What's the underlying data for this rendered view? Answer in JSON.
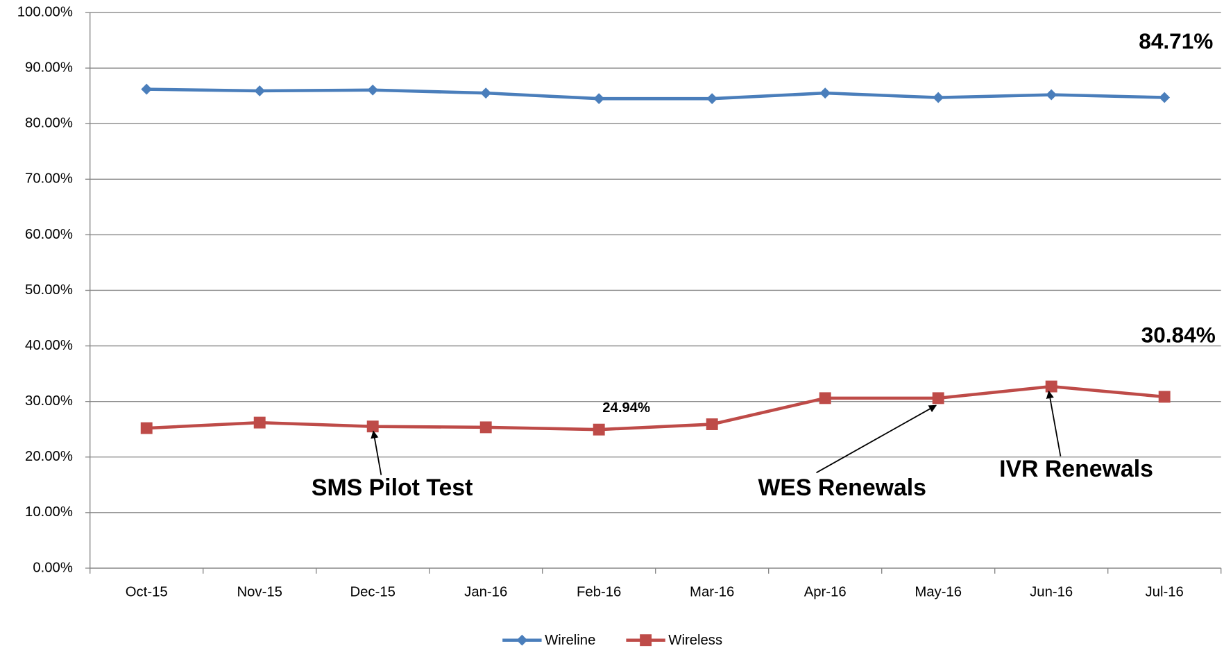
{
  "chart_data": {
    "type": "line",
    "categories": [
      "Oct-15",
      "Nov-15",
      "Dec-15",
      "Jan-16",
      "Feb-16",
      "Mar-16",
      "Apr-16",
      "May-16",
      "Jun-16",
      "Jul-16"
    ],
    "series": [
      {
        "name": "Wireline",
        "color": "#4a7ebb",
        "marker": "diamond",
        "values": [
          86.2,
          85.9,
          86.05,
          85.5,
          84.5,
          84.5,
          85.5,
          84.7,
          85.2,
          84.71
        ],
        "value_labels": [
          null,
          null,
          null,
          null,
          null,
          null,
          null,
          null,
          null,
          "84.71%"
        ]
      },
      {
        "name": "Wireless",
        "color": "#be4b48",
        "marker": "square",
        "values": [
          25.2,
          26.2,
          25.5,
          25.35,
          24.94,
          25.9,
          30.6,
          30.6,
          32.7,
          30.84
        ],
        "value_labels": [
          null,
          null,
          null,
          null,
          "24.94%",
          null,
          null,
          null,
          null,
          "30.84%"
        ]
      }
    ],
    "ylim": [
      0,
      100
    ],
    "yticks": [
      {
        "value": 0,
        "label": "0.00%"
      },
      {
        "value": 10,
        "label": "10.00%"
      },
      {
        "value": 20,
        "label": "20.00%"
      },
      {
        "value": 30,
        "label": "30.00%"
      },
      {
        "value": 40,
        "label": "40.00%"
      },
      {
        "value": 50,
        "label": "50.00%"
      },
      {
        "value": 60,
        "label": "60.00%"
      },
      {
        "value": 70,
        "label": "70.00%"
      },
      {
        "value": 80,
        "label": "80.00%"
      },
      {
        "value": 90,
        "label": "90.00%"
      },
      {
        "value": 100,
        "label": "100.00%"
      }
    ],
    "grid": true,
    "legend": "bottom",
    "annotations": [
      "SMS Pilot Test",
      "WES Renewals",
      "IVR Renewals"
    ]
  }
}
